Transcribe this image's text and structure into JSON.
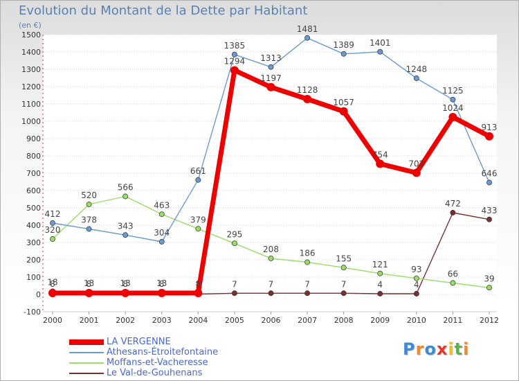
{
  "chart_data": {
    "type": "line",
    "title": "Evolution du Montant de la Dette par Habitant",
    "subtitle": "(en €)",
    "x": [
      "2000",
      "2001",
      "2002",
      "2003",
      "2004",
      "2005",
      "2006",
      "2007",
      "2008",
      "2009",
      "2010",
      "2011",
      "2012"
    ],
    "ylim": [
      -100,
      1500
    ],
    "yticks": [
      -100,
      0,
      100,
      200,
      300,
      400,
      500,
      600,
      700,
      800,
      900,
      1000,
      1100,
      1200,
      1300,
      1400,
      1500
    ],
    "grid": "horizontal",
    "legend_position": "bottom-left",
    "series": [
      {
        "name": "LA VERGENNE",
        "color": "#ee0000",
        "values": [
          8,
          8,
          8,
          8,
          8,
          1294,
          1197,
          1128,
          1057,
          754,
          702,
          1024,
          913
        ],
        "labels": [
          "8",
          "8",
          "8",
          "8",
          "8",
          "1294",
          "1197",
          "1128",
          "1057",
          "754",
          "702",
          "1024",
          "913"
        ]
      },
      {
        "name": "Athesans-Étroitefontaine",
        "color": "#6a9ad2",
        "values": [
          412,
          378,
          343,
          304,
          661,
          1385,
          1313,
          1481,
          1389,
          1401,
          1248,
          1125,
          646
        ],
        "labels": [
          "412",
          "378",
          "343",
          "304",
          "661",
          "1385",
          "1313",
          "1481",
          "1389",
          "1401",
          "1248",
          "1125",
          "646"
        ]
      },
      {
        "name": "Moffans-et-Vacheresse",
        "color": "#99dd66",
        "values": [
          320,
          520,
          566,
          463,
          379,
          295,
          208,
          186,
          155,
          121,
          93,
          66,
          39
        ],
        "labels": [
          "320",
          "520",
          "566",
          "463",
          "379",
          "295",
          "208",
          "186",
          "155",
          "121",
          "93",
          "66",
          "39"
        ]
      },
      {
        "name": "Le Val-de-Gouhenans",
        "color": "#7a2f2f",
        "values": [
          18,
          13,
          13,
          13,
          2,
          7,
          7,
          7,
          7,
          4,
          4,
          472,
          433
        ],
        "labels": [
          "18",
          "13",
          "13",
          "13",
          "2",
          "7",
          "7",
          "7",
          "7",
          "4",
          "4",
          "472",
          "433"
        ]
      }
    ]
  },
  "logo": {
    "letters": [
      "P",
      "r",
      "o",
      "x",
      "i",
      "t",
      "i"
    ],
    "colors": [
      "#3d8ad6",
      "#f08a24",
      "#3d8ad6",
      "#e8342a",
      "#f0c020",
      "#57b447",
      "#f08a24"
    ]
  }
}
